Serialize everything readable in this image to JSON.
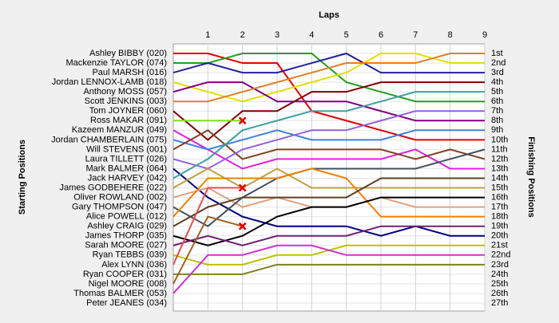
{
  "chart_data": {
    "type": "line",
    "title": "Laps",
    "y_label": "Starting Positions",
    "y2_label": "Finishing Positions",
    "x": [
      0,
      1,
      2,
      3,
      4,
      5,
      6,
      7,
      8,
      9
    ],
    "xlim": [
      0,
      9
    ],
    "xticks": [
      1,
      2,
      3,
      4,
      5,
      6,
      7,
      8,
      9
    ],
    "ylim": [
      1,
      27
    ],
    "y_reversed": true,
    "grid": true,
    "y2ticks": [
      {
        "value": 1,
        "label": "1st"
      },
      {
        "value": 2,
        "label": "2nd"
      },
      {
        "value": 3,
        "label": "3rd"
      },
      {
        "value": 4,
        "label": "4th"
      },
      {
        "value": 5,
        "label": "5th"
      },
      {
        "value": 6,
        "label": "6th"
      },
      {
        "value": 7,
        "label": "7th"
      },
      {
        "value": 8,
        "label": "8th"
      },
      {
        "value": 9,
        "label": "9th"
      },
      {
        "value": 10,
        "label": "10th"
      },
      {
        "value": 11,
        "label": "11th"
      },
      {
        "value": 12,
        "label": "12th"
      },
      {
        "value": 13,
        "label": "13th"
      },
      {
        "value": 14,
        "label": "14th"
      },
      {
        "value": 15,
        "label": "15th"
      },
      {
        "value": 16,
        "label": "16th"
      },
      {
        "value": 17,
        "label": "17th"
      },
      {
        "value": 18,
        "label": "18th"
      },
      {
        "value": 19,
        "label": "19th"
      },
      {
        "value": 20,
        "label": "20th"
      },
      {
        "value": 21,
        "label": "21st"
      },
      {
        "value": 22,
        "label": "22nd"
      },
      {
        "value": 23,
        "label": "23rd"
      },
      {
        "value": 24,
        "label": "24th"
      },
      {
        "value": 25,
        "label": "25th"
      },
      {
        "value": 26,
        "label": "26th"
      },
      {
        "value": 27,
        "label": "27th"
      }
    ],
    "series": [
      {
        "name": "Ashley BIBBY (020)",
        "color": "#e00000",
        "values": [
          1,
          1,
          2,
          2,
          7,
          8,
          9,
          10,
          10,
          10
        ]
      },
      {
        "name": "Mackenzie TAYLOR (074)",
        "color": "#20a020",
        "values": [
          2,
          2,
          1,
          1,
          1,
          4,
          5,
          6,
          6,
          6
        ]
      },
      {
        "name": "Paul MARSH (016)",
        "color": "#2020a0",
        "values": [
          3,
          2,
          3,
          3,
          2,
          1,
          3,
          3,
          3,
          3
        ]
      },
      {
        "name": "Jordan LENNOX-LAMB (018)",
        "color": "#e0e000",
        "values": [
          4,
          5,
          6,
          5,
          4,
          3,
          1,
          1,
          2,
          2
        ]
      },
      {
        "name": "Anthony MOSS (057)",
        "color": "#800080",
        "values": [
          5,
          4,
          4,
          6,
          6,
          6,
          7,
          8,
          8,
          8
        ]
      },
      {
        "name": "Scott JENKINS (003)",
        "color": "#e08020",
        "values": [
          6,
          6,
          5,
          4,
          3,
          2,
          2,
          2,
          1,
          1
        ]
      },
      {
        "name": "Tom JOYNER (060)",
        "color": "#800000",
        "values": [
          7,
          10,
          7,
          7,
          5,
          5,
          4,
          4,
          4,
          4
        ]
      },
      {
        "name": "Ross MAKAR (091)",
        "color": "#80e020",
        "values": [
          8,
          8,
          8,
          null,
          null,
          null,
          null,
          null,
          null,
          null
        ]
      },
      {
        "name": "Kazeem MANZUR (049)",
        "color": "#e020e0",
        "values": [
          9,
          11,
          13,
          12,
          12,
          12,
          12,
          11,
          13,
          13
        ]
      },
      {
        "name": "Jordan CHAMBERLAIN (075)",
        "color": "#4080e0",
        "values": [
          10,
          11,
          10,
          9,
          10,
          10,
          10,
          9,
          9,
          9
        ]
      },
      {
        "name": "Will STEVENS (001)",
        "color": "#804020",
        "values": [
          11,
          9,
          12,
          11,
          11,
          11,
          11,
          12,
          11,
          12
        ]
      },
      {
        "name": "Laura TILLETT (026)",
        "color": "#9060e0",
        "values": [
          12,
          13,
          11,
          10,
          9,
          9,
          8,
          7,
          7,
          7
        ]
      },
      {
        "name": "Mark BALMER (064)",
        "color": "#000080",
        "values": [
          13,
          16,
          18,
          19,
          19,
          19,
          20,
          19,
          20,
          20
        ]
      },
      {
        "name": "Jack HARVEY (042)",
        "color": "#40a0a0",
        "values": [
          14,
          12,
          9,
          8,
          7,
          7,
          6,
          5,
          5,
          5
        ]
      },
      {
        "name": "James GODBEHERE (022)",
        "color": "#c0a040",
        "values": [
          15,
          13,
          15,
          13,
          15,
          15,
          15,
          15,
          15,
          15
        ]
      },
      {
        "name": "Oliver ROWLAND (002)",
        "color": "#e0a080",
        "values": [
          16,
          15,
          17,
          16,
          17,
          17,
          16,
          17,
          17,
          17
        ]
      },
      {
        "name": "Gary THOMPSON (047)",
        "color": "#405060",
        "values": [
          17,
          19,
          16,
          14,
          13,
          13,
          13,
          13,
          12,
          11
        ]
      },
      {
        "name": "Alice POWELL (012)",
        "color": "#f08000",
        "values": [
          18,
          14,
          14,
          14,
          13,
          14,
          18,
          18,
          18,
          18
        ]
      },
      {
        "name": "Ashley CRAIG (029)",
        "color": "#604020",
        "values": [
          19,
          17,
          16,
          16,
          16,
          16,
          14,
          14,
          14,
          14
        ]
      },
      {
        "name": "James THORP (035)",
        "color": "#000000",
        "values": [
          20,
          21,
          20,
          18,
          17,
          17,
          16,
          16,
          16,
          16
        ]
      },
      {
        "name": "Sarah MOORE (027)",
        "color": "#702070",
        "values": [
          21,
          20,
          21,
          20,
          20,
          20,
          19,
          19,
          19,
          19
        ]
      },
      {
        "name": "Ryan TEBBS (039)",
        "color": "#c0c000",
        "values": [
          22,
          23,
          23,
          22,
          22,
          21,
          21,
          21,
          21,
          21
        ]
      },
      {
        "name": "Alex LYNN (036)",
        "color": "#e05050",
        "values": [
          23,
          15,
          15,
          null,
          null,
          null,
          null,
          null,
          null,
          null
        ]
      },
      {
        "name": "Ryan COOPER (031)",
        "color": "#808020",
        "values": [
          24,
          24,
          24,
          23,
          23,
          23,
          23,
          23,
          23,
          23
        ]
      },
      {
        "name": "Nigel MOORE (008)",
        "color": "#a06020",
        "values": [
          25,
          18,
          19,
          null,
          null,
          null,
          null,
          null,
          null,
          null
        ]
      },
      {
        "name": "Thomas BALMER (053)",
        "color": "#d030d0",
        "values": [
          26,
          22,
          22,
          21,
          21,
          22,
          22,
          22,
          22,
          22
        ]
      },
      {
        "name": "Peter JEANES (034)",
        "color": "#808080",
        "values": [
          27,
          null,
          null,
          null,
          null,
          null,
          null,
          null,
          null,
          null
        ]
      }
    ]
  }
}
